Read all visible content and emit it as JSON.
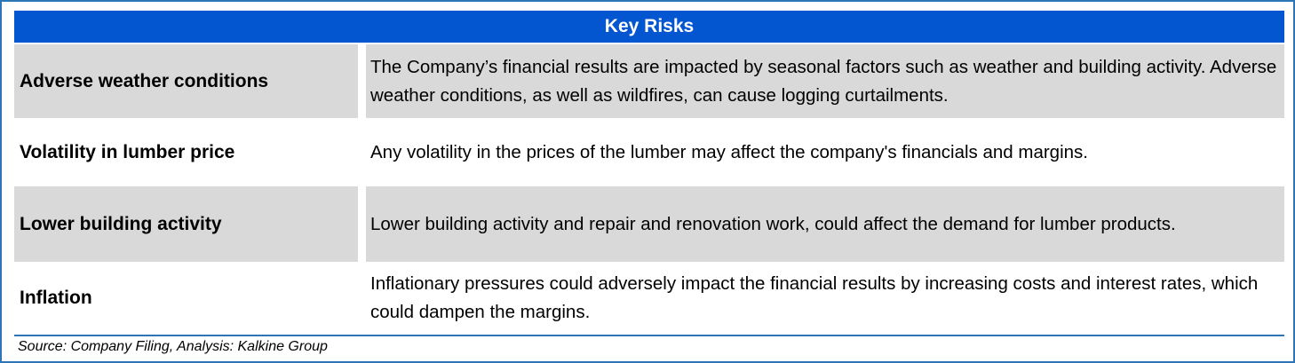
{
  "title": "Key Risks",
  "rows": [
    {
      "risk": "Adverse weather conditions",
      "description": "The Company’s financial results are impacted by seasonal factors such as weather and building activity. Adverse weather conditions, as well as wildfires, can cause logging curtailments."
    },
    {
      "risk": "Volatility in lumber price",
      "description": "Any volatility in the prices of the lumber may affect the company's financials and margins."
    },
    {
      "risk": "Lower building activity",
      "description": "Lower building activity and repair and renovation work, could affect the demand for lumber products."
    },
    {
      "risk": "Inflation",
      "description": "Inflationary pressures could adversely impact the financial results by increasing costs and interest rates, which could dampen the margins."
    }
  ],
  "source": "Source: Company Filing, Analysis: Kalkine Group",
  "colors": {
    "header": "#0455d0",
    "border": "#2e75b6",
    "row_shade": "#d9d9d9"
  }
}
